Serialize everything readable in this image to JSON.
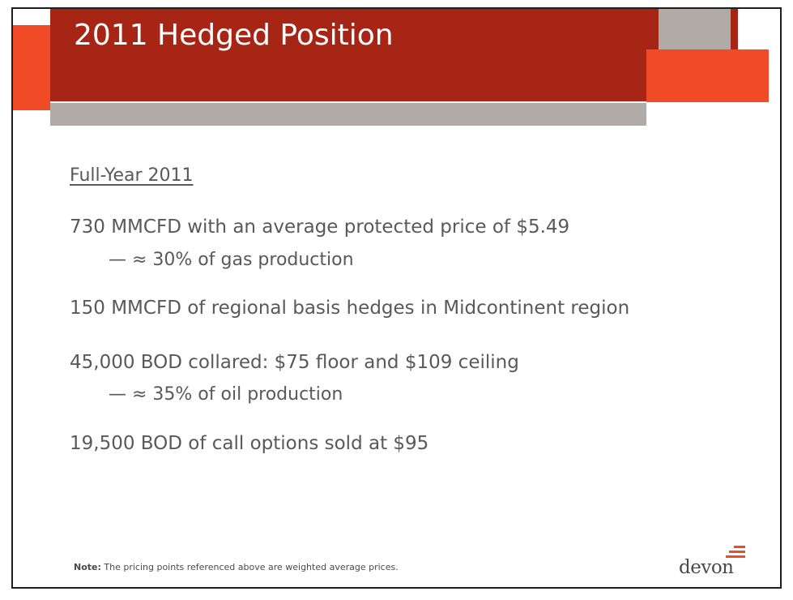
{
  "slide": {
    "title": "2011 Hedged Position",
    "subheading": "Full-Year 2011",
    "bullets": [
      {
        "text": "730 MMCFD with an average protected price of $5.49",
        "level": 1
      },
      {
        "text": "— ≈ 30% of gas production",
        "level": 2
      },
      {
        "text": "150 MMCFD of regional basis hedges in Midcontinent region",
        "level": 1
      },
      {
        "text": "45,000 BOD collared: $75 floor and $109 ceiling",
        "level": 1
      },
      {
        "text": "— ≈ 35% of oil production",
        "level": 2
      },
      {
        "text": "19,500 BOD of call options sold at $95",
        "level": 1
      }
    ],
    "note": {
      "label": "Note:",
      "text": " The pricing points referenced above are weighted average prices."
    },
    "logo": {
      "text": "devon",
      "icon": "devon-stripes-icon"
    }
  },
  "colors": {
    "dark_red": "#a62514",
    "orange": "#f04a26",
    "gray": "#b0aba6",
    "text": "#595959"
  }
}
